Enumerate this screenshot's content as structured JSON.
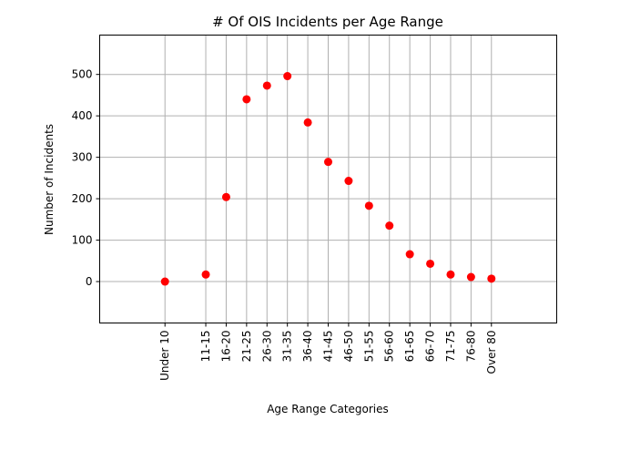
{
  "chart_data": {
    "type": "scatter",
    "title": "# Of OIS Incidents per Age Range",
    "xlabel": "Age Range Categories",
    "ylabel": "Number of Incidents",
    "ylim": [
      -100,
      595
    ],
    "yticks": [
      0,
      100,
      200,
      300,
      400,
      500
    ],
    "grid": true,
    "marker_color": "#ff0000",
    "x": [
      0,
      20,
      30,
      40,
      50,
      60,
      70,
      80,
      90,
      100,
      110,
      120,
      130,
      140,
      150,
      160
    ],
    "xlim": [
      -32,
      192
    ],
    "categories": [
      "Under 10",
      "11-15",
      "16-20",
      "21-25",
      "26-30",
      "31-35",
      "36-40",
      "41-45",
      "46-50",
      "51-55",
      "56-60",
      "61-65",
      "66-70",
      "71-75",
      "76-80",
      "Over 80"
    ],
    "values": [
      0,
      17,
      204,
      440,
      473,
      496,
      384,
      289,
      243,
      183,
      135,
      66,
      43,
      17,
      11,
      7
    ]
  }
}
